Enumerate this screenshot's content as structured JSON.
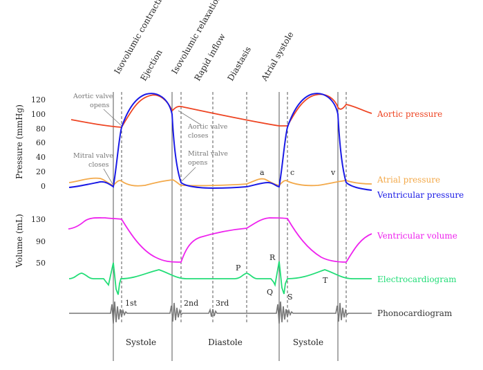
{
  "phases": [
    "Isovolumic contraction",
    "Ejection",
    "Isovolumic relaxation",
    "Rapid inflow",
    "Diastasis",
    "Atrial systole"
  ],
  "pressure_axis": {
    "title": "Pressure (mmHg)",
    "ticks": [
      "0",
      "20",
      "40",
      "60",
      "80",
      "100",
      "120"
    ]
  },
  "volume_axis": {
    "title": "Volume (mL)",
    "ticks": [
      "50",
      "90",
      "130"
    ]
  },
  "annotations": {
    "aortic_opens": [
      "Aortic valve",
      "opens"
    ],
    "aortic_closes": [
      "Aortic valve",
      "closes"
    ],
    "mitral_closes": [
      "Mitral valve",
      "closes"
    ],
    "mitral_opens": [
      "Mitral valve",
      "opens"
    ]
  },
  "waves": {
    "a": "a",
    "c": "c",
    "v": "v",
    "P": "P",
    "R": "R",
    "Q": "Q",
    "S": "S",
    "T": "T"
  },
  "heart_sounds": [
    "1st",
    "2nd",
    "3rd"
  ],
  "periods": [
    "Systole",
    "Diastole",
    "Systole"
  ],
  "legend": {
    "aortic": "Aortic pressure",
    "atrial": "Atrial pressure",
    "ventricular": "Ventricular pressure",
    "volume": "Ventricular volume",
    "ecg": "Electrocardiogram",
    "pcg": "Phonocardiogram"
  },
  "colors": {
    "aortic": "#ee4422",
    "atrial": "#f3a94a",
    "ventricular": "#1a1ae6",
    "volume": "#ee22ee",
    "ecg": "#22dd77",
    "pcg": "#777777",
    "annotation": "#777777"
  }
}
